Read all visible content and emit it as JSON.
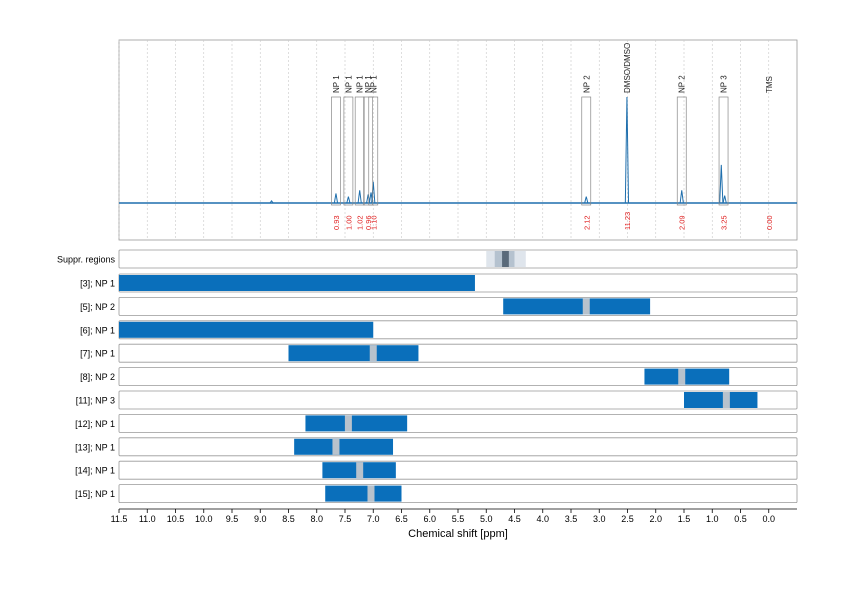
{
  "chart_data": {
    "type": "nmr_spectrum_with_ranges",
    "xlabel": "Chemical shift [ppm]",
    "x_range_ppm": [
      11.5,
      -0.5
    ],
    "x_ticks": [
      "11.5",
      "11.0",
      "10.5",
      "10.0",
      "9.5",
      "9.0",
      "8.5",
      "8.0",
      "7.5",
      "7.0",
      "6.5",
      "6.0",
      "5.5",
      "5.0",
      "4.5",
      "4.0",
      "3.5",
      "3.0",
      "2.5",
      "2.0",
      "1.5",
      "1.0",
      "0.5",
      "0.0"
    ],
    "colors": {
      "spectrum": "#1f6fad",
      "range_bar": "#0a6fbb",
      "peak_marker": "#b8c2cc",
      "integral_label": "#e02020",
      "suppr_light": "#dfe5ec",
      "suppr_mid": "#b5c2cf",
      "suppr_dark": "#5a6a7a",
      "frame": "#999999",
      "grid": "#c8c8c8"
    },
    "spectrum_peaks": [
      {
        "ppm": 7.66,
        "height": 0.09
      },
      {
        "ppm": 7.44,
        "height": 0.06
      },
      {
        "ppm": 7.24,
        "height": 0.12
      },
      {
        "ppm": 7.09,
        "height": 0.08
      },
      {
        "ppm": 7.04,
        "height": 0.1
      },
      {
        "ppm": 7.0,
        "height": 0.2
      },
      {
        "ppm": 3.23,
        "height": 0.06
      },
      {
        "ppm": 2.51,
        "height": 1.0
      },
      {
        "ppm": 1.54,
        "height": 0.12
      },
      {
        "ppm": 0.84,
        "height": 0.36
      },
      {
        "ppm": 0.78,
        "height": 0.07
      },
      {
        "ppm": 8.8,
        "height": 0.02
      }
    ],
    "peak_annotations": [
      {
        "label": "NP 1",
        "ppm": 7.66,
        "integral": "0.93"
      },
      {
        "label": "NP 1",
        "ppm": 7.44,
        "integral": "1.00"
      },
      {
        "label": "NP 1",
        "ppm": 7.24,
        "integral": "1.02"
      },
      {
        "label": "NP 1",
        "ppm": 7.09,
        "integral": "0.96"
      },
      {
        "label": "NP 1",
        "ppm": 7.0,
        "integral": "1.10"
      },
      {
        "label": "NP 2",
        "ppm": 3.23,
        "integral": "2.12"
      },
      {
        "label": "DMSO/DMSO",
        "ppm": 2.51,
        "integral": "11.23"
      },
      {
        "label": "NP 2",
        "ppm": 1.54,
        "integral": "2.09"
      },
      {
        "label": "NP 3",
        "ppm": 0.8,
        "integral": "3.25"
      },
      {
        "label": "TMS",
        "ppm": 0.0,
        "integral": "0.00"
      }
    ],
    "suppressed_regions": {
      "label": "Suppr. regions",
      "outer": [
        5.0,
        4.3
      ],
      "inner": [
        4.85,
        4.5
      ],
      "core": [
        4.72,
        4.6
      ]
    },
    "ranges": [
      {
        "label": "[3]; NP 1",
        "from": 11.5,
        "to": 5.2,
        "marker": null
      },
      {
        "label": "[5]; NP 2",
        "from": 4.7,
        "to": 2.1,
        "marker": 3.23
      },
      {
        "label": "[6]; NP 1",
        "from": 11.5,
        "to": 7.0,
        "marker": null
      },
      {
        "label": "[7]; NP 1",
        "from": 8.5,
        "to": 6.2,
        "marker": 7.0
      },
      {
        "label": "[8]; NP 2",
        "from": 2.2,
        "to": 0.7,
        "marker": 1.54
      },
      {
        "label": "[11]; NP 3",
        "from": 1.5,
        "to": 0.2,
        "marker": 0.75
      },
      {
        "label": "[12]; NP 1",
        "from": 8.2,
        "to": 6.4,
        "marker": 7.44
      },
      {
        "label": "[13]; NP 1",
        "from": 8.4,
        "to": 6.65,
        "marker": 7.66
      },
      {
        "label": "[14]; NP 1",
        "from": 7.9,
        "to": 6.6,
        "marker": 7.24
      },
      {
        "label": "[15]; NP 1",
        "from": 7.85,
        "to": 6.5,
        "marker": 7.04
      }
    ]
  }
}
